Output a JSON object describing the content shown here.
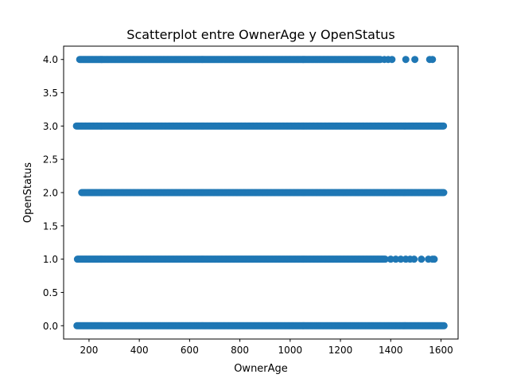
{
  "chart_data": {
    "type": "scatter",
    "title": "Scatterplot entre OwnerAge y OpenStatus",
    "xlabel": "OwnerAge",
    "ylabel": "OpenStatus",
    "xlim": [
      99,
      1668
    ],
    "ylim": [
      -0.2,
      4.2
    ],
    "xticks": [
      200,
      400,
      600,
      800,
      1000,
      1200,
      1400,
      1600
    ],
    "yticks": [
      "0.0",
      "0.5",
      "1.0",
      "1.5",
      "2.0",
      "2.5",
      "3.0",
      "3.5",
      "4.0"
    ],
    "grid": false,
    "color": "#1f77b4",
    "rows": [
      {
        "y": 0,
        "dense_from": 152,
        "dense_to": 1612,
        "isolated": []
      },
      {
        "y": 1,
        "dense_from": 154,
        "dense_to": 1380,
        "isolated": [
          1400,
          1420,
          1440,
          1460,
          1477,
          1493,
          1522,
          1550,
          1566,
          1573
        ]
      },
      {
        "y": 2,
        "dense_from": 171,
        "dense_to": 1612,
        "isolated": []
      },
      {
        "y": 3,
        "dense_from": 150,
        "dense_to": 1612,
        "isolated": []
      },
      {
        "y": 4,
        "dense_from": 163,
        "dense_to": 1360,
        "isolated": [
          1375,
          1390,
          1405,
          1460,
          1496,
          1555,
          1566
        ]
      }
    ]
  }
}
